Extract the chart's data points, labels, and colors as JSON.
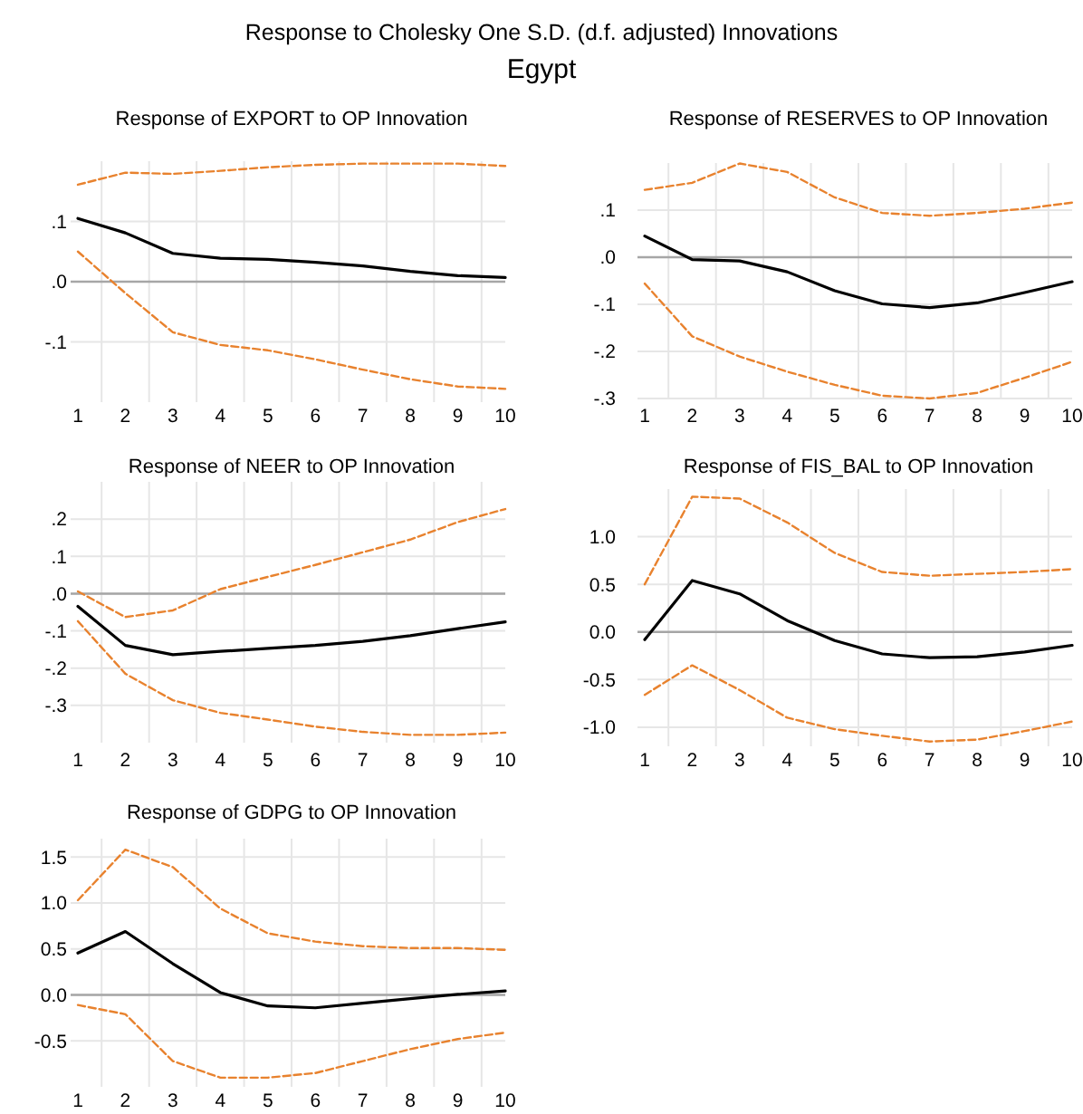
{
  "chart_data": [
    {
      "type": "line",
      "title": "Response of EXPORT to OP Innovation",
      "annotations": [
        "Response to Cholesky One S.D. (d.f. adjusted) Innovations",
        "Egypt"
      ],
      "categories": [
        "1",
        "2",
        "3",
        "4",
        "5",
        "6",
        "7",
        "8",
        "9",
        "10"
      ],
      "ylim": [
        -0.2,
        0.2
      ],
      "yticks": [
        {
          "value": -0.1,
          "label": "-.1"
        },
        {
          "value": 0,
          "label": ".0"
        },
        {
          "value": 0.1,
          "label": ".1"
        }
      ],
      "grid": true,
      "ref_lines": [
        {
          "axis": "y",
          "value": 0,
          "color": "#a6a6a6"
        }
      ],
      "series": [
        {
          "color": "#000000",
          "line_style": "solid",
          "values": [
            0.105,
            0.081,
            0.047,
            0.039,
            0.037,
            0.032,
            0.026,
            0.017,
            0.01,
            0.007
          ]
        },
        {
          "color": "#e8822e",
          "line_style": "dashed",
          "values": [
            0.161,
            0.181,
            0.179,
            0.184,
            0.19,
            0.194,
            0.196,
            0.196,
            0.196,
            0.192
          ]
        },
        {
          "color": "#e8822e",
          "line_style": "dashed",
          "values": [
            0.05,
            -0.019,
            -0.084,
            -0.105,
            -0.114,
            -0.129,
            -0.146,
            -0.162,
            -0.174,
            -0.178
          ]
        }
      ]
    },
    {
      "type": "line",
      "title": "Response of RESERVES to OP Innovation",
      "categories": [
        "1",
        "2",
        "3",
        "4",
        "5",
        "6",
        "7",
        "8",
        "9",
        "10"
      ],
      "ylim": [
        -0.3,
        0.2
      ],
      "yticks": [
        {
          "value": -0.3,
          "label": "-.3"
        },
        {
          "value": -0.2,
          "label": "-.2"
        },
        {
          "value": -0.1,
          "label": "-.1"
        },
        {
          "value": 0,
          "label": ".0"
        },
        {
          "value": 0.1,
          "label": ".1"
        }
      ],
      "grid": true,
      "ref_lines": [
        {
          "axis": "y",
          "value": 0,
          "color": "#a6a6a6"
        }
      ],
      "series": [
        {
          "color": "#000000",
          "line_style": "solid",
          "values": [
            0.045,
            -0.005,
            -0.008,
            -0.031,
            -0.071,
            -0.099,
            -0.107,
            -0.097,
            -0.075,
            -0.052
          ]
        },
        {
          "color": "#e8822e",
          "line_style": "dashed",
          "values": [
            0.143,
            0.158,
            0.199,
            0.181,
            0.127,
            0.094,
            0.088,
            0.094,
            0.103,
            0.116
          ]
        },
        {
          "color": "#e8822e",
          "line_style": "dashed",
          "values": [
            -0.056,
            -0.168,
            -0.211,
            -0.243,
            -0.271,
            -0.294,
            -0.3,
            -0.288,
            -0.256,
            -0.222
          ]
        }
      ]
    },
    {
      "type": "line",
      "title": "Response of NEER to OP Innovation",
      "categories": [
        "1",
        "2",
        "3",
        "4",
        "5",
        "6",
        "7",
        "8",
        "9",
        "10"
      ],
      "ylim": [
        -0.4,
        0.3
      ],
      "yticks": [
        {
          "value": -0.3,
          "label": "-.3"
        },
        {
          "value": -0.2,
          "label": "-.2"
        },
        {
          "value": -0.1,
          "label": "-.1"
        },
        {
          "value": 0,
          "label": ".0"
        },
        {
          "value": 0.1,
          "label": ".1"
        },
        {
          "value": 0.2,
          "label": ".2"
        }
      ],
      "grid": true,
      "ref_lines": [
        {
          "axis": "y",
          "value": 0,
          "color": "#a6a6a6"
        }
      ],
      "series": [
        {
          "color": "#000000",
          "line_style": "solid",
          "values": [
            -0.034,
            -0.139,
            -0.164,
            -0.155,
            -0.147,
            -0.139,
            -0.128,
            -0.113,
            -0.094,
            -0.076
          ]
        },
        {
          "color": "#e8822e",
          "line_style": "dashed",
          "values": [
            0.006,
            -0.063,
            -0.045,
            0.012,
            0.045,
            0.077,
            0.111,
            0.145,
            0.192,
            0.227
          ]
        },
        {
          "color": "#e8822e",
          "line_style": "dashed",
          "values": [
            -0.074,
            -0.215,
            -0.286,
            -0.32,
            -0.338,
            -0.357,
            -0.371,
            -0.379,
            -0.379,
            -0.373
          ]
        }
      ]
    },
    {
      "type": "line",
      "title": "Response of FIS_BAL to OP Innovation",
      "categories": [
        "1",
        "2",
        "3",
        "4",
        "5",
        "6",
        "7",
        "8",
        "9",
        "10"
      ],
      "ylim": [
        -1.2,
        1.5
      ],
      "yticks": [
        {
          "value": -1,
          "label": "-1.0"
        },
        {
          "value": -0.5,
          "label": "-0.5"
        },
        {
          "value": 0,
          "label": "0.0"
        },
        {
          "value": 0.5,
          "label": "0.5"
        },
        {
          "value": 1,
          "label": "1.0"
        }
      ],
      "grid": true,
      "ref_lines": [
        {
          "axis": "y",
          "value": 0,
          "color": "#a6a6a6"
        }
      ],
      "series": [
        {
          "color": "#000000",
          "line_style": "solid",
          "values": [
            -0.08,
            0.54,
            0.4,
            0.12,
            -0.09,
            -0.23,
            -0.27,
            -0.26,
            -0.21,
            -0.14
          ]
        },
        {
          "color": "#e8822e",
          "line_style": "dashed",
          "values": [
            0.5,
            1.42,
            1.4,
            1.15,
            0.83,
            0.63,
            0.59,
            0.61,
            0.63,
            0.66
          ]
        },
        {
          "color": "#e8822e",
          "line_style": "dashed",
          "values": [
            -0.66,
            -0.35,
            -0.61,
            -0.9,
            -1.02,
            -1.09,
            -1.15,
            -1.13,
            -1.04,
            -0.94
          ]
        }
      ]
    },
    {
      "type": "line",
      "title": "Response of GDPG to OP Innovation",
      "categories": [
        "1",
        "2",
        "3",
        "4",
        "5",
        "6",
        "7",
        "8",
        "9",
        "10"
      ],
      "ylim": [
        -1.0,
        1.7
      ],
      "yticks": [
        {
          "value": -0.5,
          "label": "-0.5"
        },
        {
          "value": 0,
          "label": "0.0"
        },
        {
          "value": 0.5,
          "label": "0.5"
        },
        {
          "value": 1,
          "label": "1.0"
        },
        {
          "value": 1.5,
          "label": "1.5"
        }
      ],
      "grid": true,
      "ref_lines": [
        {
          "axis": "y",
          "value": 0,
          "color": "#a6a6a6"
        }
      ],
      "series": [
        {
          "color": "#000000",
          "line_style": "solid",
          "values": [
            0.456,
            0.69,
            0.34,
            0.025,
            -0.12,
            -0.14,
            -0.09,
            -0.04,
            0.006,
            0.044
          ]
        },
        {
          "color": "#e8822e",
          "line_style": "dashed",
          "values": [
            1.03,
            1.58,
            1.39,
            0.94,
            0.67,
            0.58,
            0.53,
            0.51,
            0.51,
            0.49
          ]
        },
        {
          "color": "#e8822e",
          "line_style": "dashed",
          "values": [
            -0.11,
            -0.21,
            -0.72,
            -0.9,
            -0.9,
            -0.85,
            -0.72,
            -0.59,
            -0.48,
            -0.41
          ]
        }
      ]
    }
  ]
}
